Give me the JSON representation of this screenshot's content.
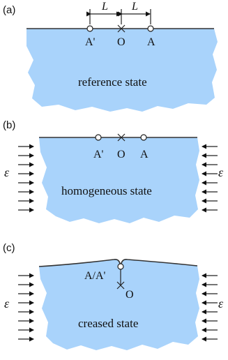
{
  "panels": [
    {
      "label": "(a)",
      "state": "reference state",
      "points": {
        "left": "A'",
        "center": "O",
        "right": "A"
      },
      "dimension_label": "L"
    },
    {
      "label": "(b)",
      "state": "homogeneous state",
      "points": {
        "left": "A'",
        "center": "O",
        "right": "A"
      },
      "strain_symbol": "ε"
    },
    {
      "label": "(c)",
      "state": "creased state",
      "points": {
        "merged": "A/A'",
        "center": "O"
      },
      "strain_symbol": "ε"
    }
  ],
  "colors": {
    "substrate": "#a9d3fb",
    "lines": "#222222"
  }
}
